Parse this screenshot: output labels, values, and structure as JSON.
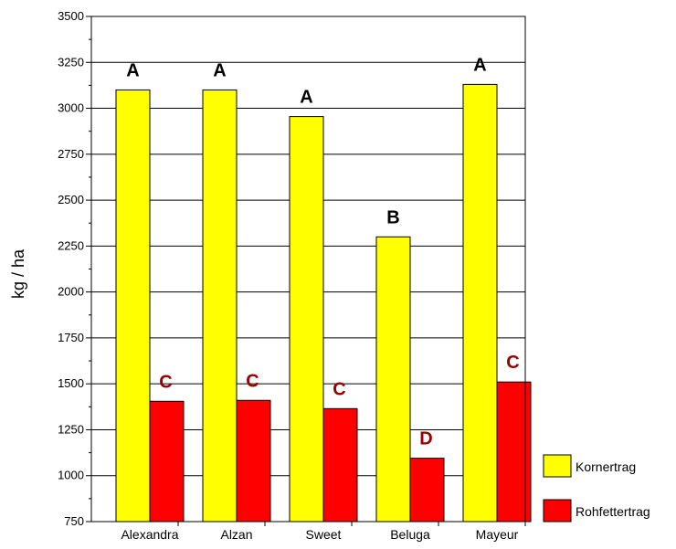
{
  "chart_data": {
    "type": "bar",
    "title": "",
    "xlabel": "",
    "ylabel": "kg / ha",
    "ylim": [
      750,
      3500
    ],
    "yticks": [
      750,
      1000,
      1250,
      1500,
      1750,
      2000,
      2250,
      2500,
      2750,
      3000,
      3250,
      3500
    ],
    "grid": "horizontal",
    "categories": [
      "Alexandra",
      "Alzan",
      "Sweet",
      "Beluga",
      "Mayeur"
    ],
    "series": [
      {
        "name": "Kornertrag",
        "color": "#ffff00",
        "values": [
          3100,
          3100,
          2955,
          2300,
          3130
        ],
        "labels": [
          "A",
          "A",
          "A",
          "B",
          "A"
        ],
        "label_color": "#000000"
      },
      {
        "name": "Rohfettertrag",
        "color": "#ff0000",
        "values": [
          1405,
          1410,
          1365,
          1095,
          1510
        ],
        "labels": [
          "C",
          "C",
          "C",
          "D",
          "C"
        ],
        "label_color": "#990000"
      }
    ],
    "legend_position": "bottom-right"
  }
}
